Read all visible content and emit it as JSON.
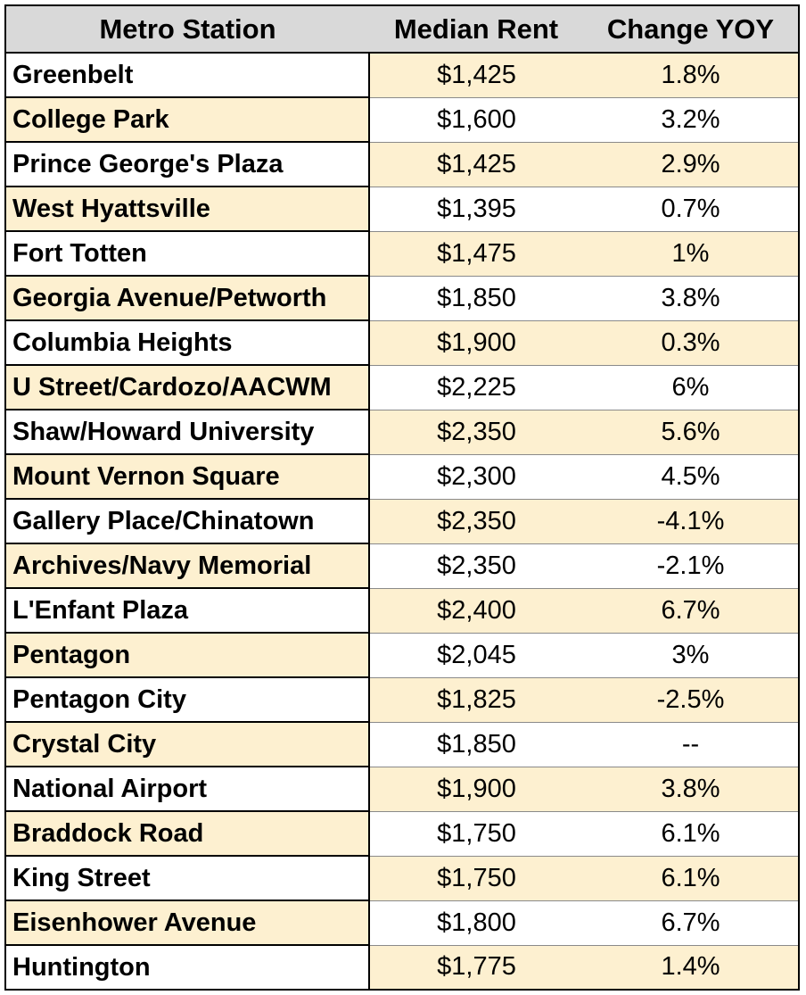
{
  "table": {
    "headers": [
      "Metro Station",
      "Median Rent",
      "Change YOY"
    ],
    "rows": [
      {
        "station": "Greenbelt",
        "rent": "$1,425",
        "change": "1.8%"
      },
      {
        "station": "College Park",
        "rent": "$1,600",
        "change": "3.2%"
      },
      {
        "station": "Prince George's Plaza",
        "rent": "$1,425",
        "change": "2.9%"
      },
      {
        "station": "West Hyattsville",
        "rent": "$1,395",
        "change": "0.7%"
      },
      {
        "station": "Fort Totten",
        "rent": "$1,475",
        "change": "1%"
      },
      {
        "station": "Georgia Avenue/Petworth",
        "rent": "$1,850",
        "change": "3.8%"
      },
      {
        "station": "Columbia Heights",
        "rent": "$1,900",
        "change": "0.3%"
      },
      {
        "station": "U Street/Cardozo/AACWM",
        "rent": "$2,225",
        "change": "6%"
      },
      {
        "station": "Shaw/Howard University",
        "rent": "$2,350",
        "change": "5.6%"
      },
      {
        "station": "Mount Vernon Square",
        "rent": "$2,300",
        "change": "4.5%"
      },
      {
        "station": "Gallery Place/Chinatown",
        "rent": "$2,350",
        "change": "-4.1%"
      },
      {
        "station": "Archives/Navy Memorial",
        "rent": "$2,350",
        "change": "-2.1%"
      },
      {
        "station": "L'Enfant Plaza",
        "rent": "$2,400",
        "change": "6.7%"
      },
      {
        "station": "Pentagon",
        "rent": "$2,045",
        "change": "3%"
      },
      {
        "station": "Pentagon City",
        "rent": "$1,825",
        "change": "-2.5%"
      },
      {
        "station": "Crystal City",
        "rent": "$1,850",
        "change": "--"
      },
      {
        "station": "National Airport",
        "rent": "$1,900",
        "change": "3.8%"
      },
      {
        "station": "Braddock Road",
        "rent": "$1,750",
        "change": "6.1%"
      },
      {
        "station": "King Street",
        "rent": "$1,750",
        "change": "6.1%"
      },
      {
        "station": "Eisenhower Avenue",
        "rent": "$1,800",
        "change": "6.7%"
      },
      {
        "station": "Huntington",
        "rent": "$1,775",
        "change": "1.4%"
      }
    ]
  },
  "colors": {
    "header_bg": "#d9d9d9",
    "highlight_bg": "#fdf0d0",
    "border": "#000000"
  }
}
